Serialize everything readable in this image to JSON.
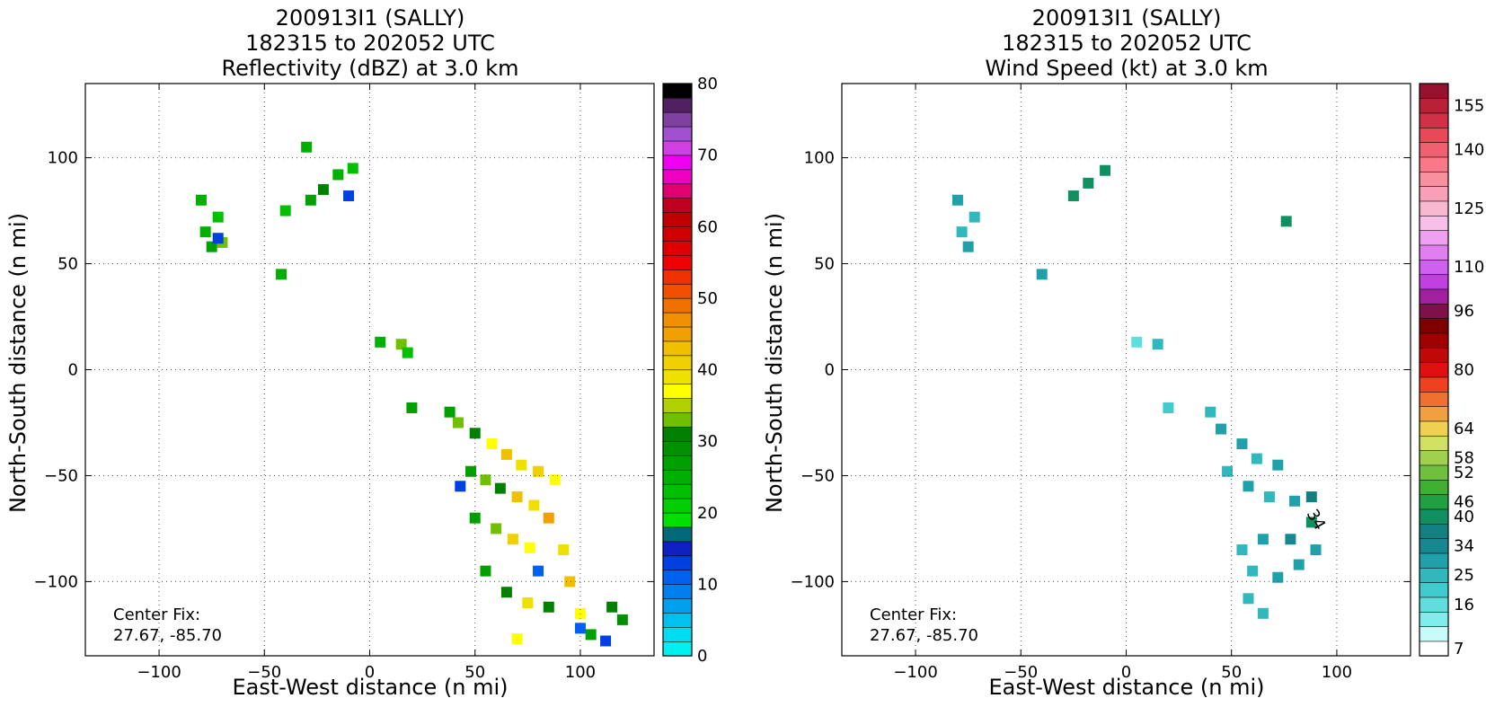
{
  "chart_data": [
    {
      "type": "heatmap",
      "id": "left",
      "title_lines": [
        "200913I1 (SALLY)",
        "182315 to 202052 UTC",
        "Reflectivity (dBZ) at 3.0 km"
      ],
      "xlabel": "East-West distance (n mi)",
      "ylabel": "North-South distance (n mi)",
      "xlim": [
        -135,
        135
      ],
      "ylim": [
        -135,
        135
      ],
      "xticks": [
        -100,
        -50,
        0,
        50,
        100
      ],
      "xtick_labels": [
        "−100",
        "−50",
        "0",
        "50",
        "100"
      ],
      "yticks": [
        100,
        50,
        0,
        -50,
        -100
      ],
      "ytick_labels": [
        "100",
        "50",
        "0",
        "−50",
        "−100"
      ],
      "grid": true,
      "annotation": [
        "Center Fix:",
        "27.67, -85.70"
      ],
      "colorbar": {
        "min": 0,
        "max": 80,
        "ticks": [
          0,
          10,
          20,
          30,
          40,
          50,
          60,
          70,
          80
        ],
        "tick_labels": [
          "0",
          "10",
          "20",
          "30",
          "40",
          "50",
          "60",
          "70",
          "80"
        ],
        "colors": [
          "#00f0f0",
          "#00dcf0",
          "#00c0f0",
          "#00a0f0",
          "#0080f0",
          "#0060f0",
          "#0040e0",
          "#1020c0",
          "#006a7a",
          "#00e000",
          "#00d000",
          "#00c000",
          "#00b000",
          "#00a000",
          "#009000",
          "#008000",
          "#70c000",
          "#b0d000",
          "#ffff00",
          "#f0e000",
          "#f0d000",
          "#f0c000",
          "#f0a000",
          "#f09000",
          "#f07000",
          "#f05000",
          "#f03000",
          "#f00000",
          "#e00000",
          "#d00000",
          "#c00000",
          "#c00020",
          "#e00070",
          "#f000c0",
          "#f000f0",
          "#d040e0",
          "#a050d0",
          "#8040a0",
          "#502060",
          "#000000"
        ]
      },
      "cells": [
        {
          "x": -78,
          "y": 65,
          "v": 24
        },
        {
          "x": -75,
          "y": 58,
          "v": 26
        },
        {
          "x": -72,
          "y": 72,
          "v": 22
        },
        {
          "x": -80,
          "y": 80,
          "v": 24
        },
        {
          "x": -70,
          "y": 60,
          "v": 32
        },
        {
          "x": -28,
          "y": 80,
          "v": 26
        },
        {
          "x": -22,
          "y": 85,
          "v": 30
        },
        {
          "x": -15,
          "y": 92,
          "v": 24
        },
        {
          "x": -8,
          "y": 95,
          "v": 22
        },
        {
          "x": -30,
          "y": 105,
          "v": 24
        },
        {
          "x": -40,
          "y": 75,
          "v": 22
        },
        {
          "x": -42,
          "y": 45,
          "v": 24
        },
        {
          "x": 5,
          "y": 13,
          "v": 24
        },
        {
          "x": 15,
          "y": 12,
          "v": 32
        },
        {
          "x": 18,
          "y": 8,
          "v": 22
        },
        {
          "x": 20,
          "y": -18,
          "v": 26
        },
        {
          "x": 38,
          "y": -20,
          "v": 26
        },
        {
          "x": 42,
          "y": -25,
          "v": 32
        },
        {
          "x": 50,
          "y": -30,
          "v": 30
        },
        {
          "x": 58,
          "y": -35,
          "v": 36
        },
        {
          "x": 65,
          "y": -40,
          "v": 42
        },
        {
          "x": 72,
          "y": -45,
          "v": 38
        },
        {
          "x": 80,
          "y": -48,
          "v": 40
        },
        {
          "x": 88,
          "y": -52,
          "v": 36
        },
        {
          "x": 48,
          "y": -48,
          "v": 26
        },
        {
          "x": 55,
          "y": -52,
          "v": 32
        },
        {
          "x": 62,
          "y": -56,
          "v": 30
        },
        {
          "x": 70,
          "y": -60,
          "v": 42
        },
        {
          "x": 78,
          "y": -64,
          "v": 38
        },
        {
          "x": 85,
          "y": -70,
          "v": 44
        },
        {
          "x": 50,
          "y": -70,
          "v": 26
        },
        {
          "x": 60,
          "y": -75,
          "v": 32
        },
        {
          "x": 68,
          "y": -80,
          "v": 40
        },
        {
          "x": 76,
          "y": -84,
          "v": 36
        },
        {
          "x": 92,
          "y": -85,
          "v": 38
        },
        {
          "x": 95,
          "y": -100,
          "v": 42
        },
        {
          "x": 55,
          "y": -95,
          "v": 26
        },
        {
          "x": 65,
          "y": -105,
          "v": 30
        },
        {
          "x": 75,
          "y": -110,
          "v": 38
        },
        {
          "x": 85,
          "y": -112,
          "v": 30
        },
        {
          "x": 100,
          "y": -115,
          "v": 36
        },
        {
          "x": 115,
          "y": -112,
          "v": 30
        },
        {
          "x": 120,
          "y": -118,
          "v": 28
        },
        {
          "x": 70,
          "y": -127,
          "v": 36
        },
        {
          "x": 105,
          "y": -125,
          "v": 26
        },
        {
          "x": 43,
          "y": -55,
          "v": 12
        },
        {
          "x": 80,
          "y": -95,
          "v": 10
        },
        {
          "x": -10,
          "y": 82,
          "v": 12
        },
        {
          "x": -72,
          "y": 62,
          "v": 12
        },
        {
          "x": 100,
          "y": -122,
          "v": 10
        },
        {
          "x": 112,
          "y": -128,
          "v": 12
        }
      ]
    },
    {
      "type": "heatmap",
      "id": "right",
      "title_lines": [
        "200913I1 (SALLY)",
        "182315 to 202052 UTC",
        "Wind Speed (kt) at 3.0 km"
      ],
      "xlabel": "East-West distance (n mi)",
      "ylabel": "North-South distance (n mi)",
      "xlim": [
        -135,
        135
      ],
      "ylim": [
        -135,
        135
      ],
      "xticks": [
        -100,
        -50,
        0,
        50,
        100
      ],
      "xtick_labels": [
        "−100",
        "−50",
        "0",
        "50",
        "100"
      ],
      "yticks": [
        100,
        50,
        0,
        -50,
        -100
      ],
      "ytick_labels": [
        "100",
        "50",
        "0",
        "−50",
        "−100"
      ],
      "grid": true,
      "annotation": [
        "Center Fix:",
        "27.67, -85.70"
      ],
      "contour_label": "34",
      "colorbar": {
        "min": 4,
        "max": 160,
        "tick_values": [
          7,
          16,
          25,
          34,
          40,
          46,
          52,
          58,
          64,
          80,
          96,
          110,
          125,
          140,
          155
        ],
        "tick_labels": [
          "7",
          "16",
          "25",
          "34",
          "40",
          "46",
          "52",
          "58",
          "64",
          "80",
          "96",
          "110",
          "125",
          "140",
          "155"
        ],
        "colors": [
          "#ffffff",
          "#c8fafa",
          "#80ecec",
          "#60dede",
          "#40cccc",
          "#30b8bc",
          "#20a0a8",
          "#188890",
          "#108080",
          "#109060",
          "#20a040",
          "#40b030",
          "#70c040",
          "#a0d050",
          "#d0e060",
          "#f0d050",
          "#f0a040",
          "#f07030",
          "#f04020",
          "#e01010",
          "#c00808",
          "#a00000",
          "#800000",
          "#801048",
          "#a020a0",
          "#c040e0",
          "#d060f0",
          "#e080f0",
          "#f0a0f0",
          "#f8c0e8",
          "#f8b8d0",
          "#f8a0b8",
          "#f890a0",
          "#f87888",
          "#f06070",
          "#e84858",
          "#d03048",
          "#b82038",
          "#981030"
        ]
      },
      "cells": [
        {
          "x": -78,
          "y": 65,
          "v": 25
        },
        {
          "x": -75,
          "y": 58,
          "v": 28
        },
        {
          "x": -72,
          "y": 72,
          "v": 25
        },
        {
          "x": -80,
          "y": 80,
          "v": 30
        },
        {
          "x": -25,
          "y": 82,
          "v": 40
        },
        {
          "x": -18,
          "y": 88,
          "v": 42
        },
        {
          "x": -10,
          "y": 94,
          "v": 40
        },
        {
          "x": -40,
          "y": 45,
          "v": 28
        },
        {
          "x": 5,
          "y": 13,
          "v": 16
        },
        {
          "x": 15,
          "y": 12,
          "v": 25
        },
        {
          "x": 20,
          "y": -18,
          "v": 22
        },
        {
          "x": 40,
          "y": -20,
          "v": 25
        },
        {
          "x": 45,
          "y": -28,
          "v": 28
        },
        {
          "x": 55,
          "y": -35,
          "v": 28
        },
        {
          "x": 62,
          "y": -42,
          "v": 26
        },
        {
          "x": 72,
          "y": -45,
          "v": 28
        },
        {
          "x": 48,
          "y": -48,
          "v": 26
        },
        {
          "x": 58,
          "y": -55,
          "v": 28
        },
        {
          "x": 68,
          "y": -60,
          "v": 26
        },
        {
          "x": 80,
          "y": -62,
          "v": 30
        },
        {
          "x": 88,
          "y": -60,
          "v": 36
        },
        {
          "x": 88,
          "y": -72,
          "v": 40
        },
        {
          "x": 78,
          "y": -80,
          "v": 34
        },
        {
          "x": 65,
          "y": -80,
          "v": 28
        },
        {
          "x": 55,
          "y": -85,
          "v": 26
        },
        {
          "x": 90,
          "y": -85,
          "v": 28
        },
        {
          "x": 60,
          "y": -95,
          "v": 26
        },
        {
          "x": 72,
          "y": -98,
          "v": 28
        },
        {
          "x": 82,
          "y": -92,
          "v": 30
        },
        {
          "x": 58,
          "y": -108,
          "v": 25
        },
        {
          "x": 65,
          "y": -115,
          "v": 26
        },
        {
          "x": 76,
          "y": 70,
          "v": 40
        }
      ]
    }
  ]
}
